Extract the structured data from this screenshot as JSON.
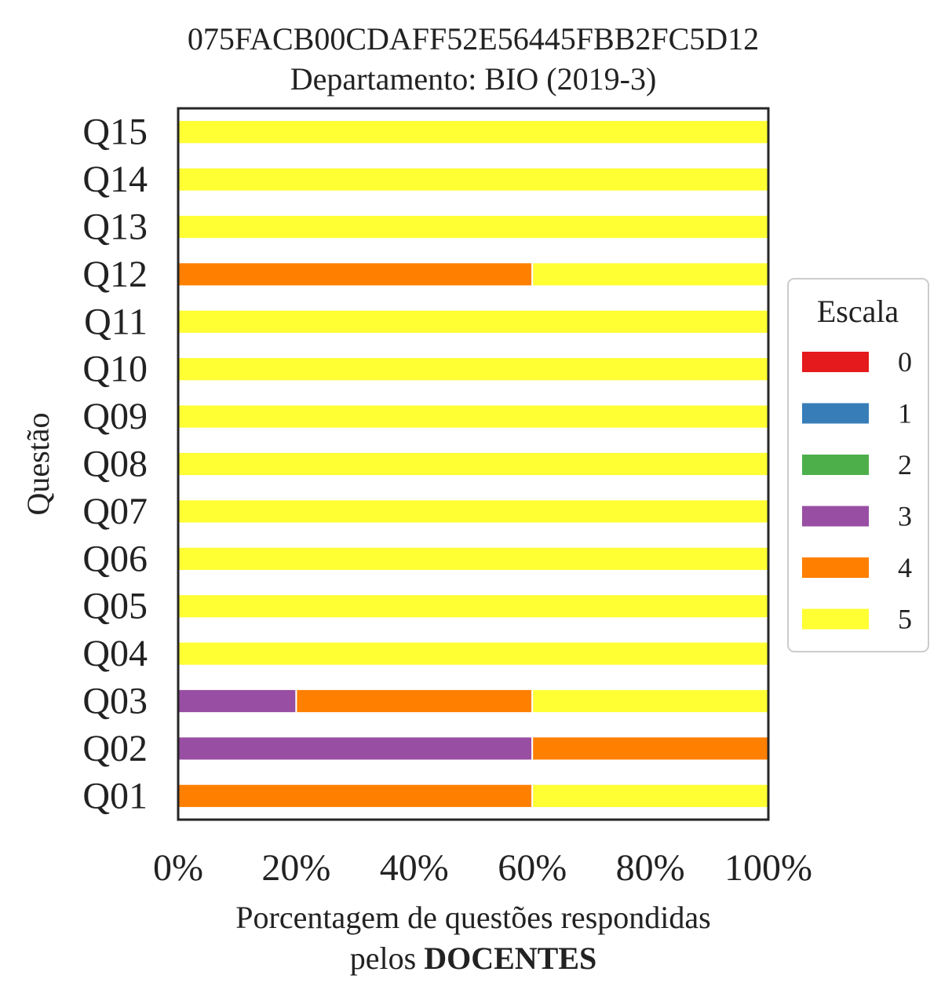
{
  "chart_data": {
    "type": "bar",
    "orientation": "horizontal",
    "stacked": true,
    "title": "075FACB00CDAFF52E56445FBB2FC5D12",
    "subtitle": "Departamento: BIO (2019-3)",
    "ylabel": "Questão",
    "xlabel_line1": "Porcentagem de questões respondidas",
    "xlabel_line2_prefix": "pelos ",
    "xlabel_line2_bold": "DOCENTES",
    "xlim": [
      0,
      100
    ],
    "xticks": [
      0,
      20,
      40,
      60,
      80,
      100
    ],
    "xtick_labels": [
      "0%",
      "20%",
      "40%",
      "60%",
      "80%",
      "100%"
    ],
    "categories": [
      "Q01",
      "Q02",
      "Q03",
      "Q04",
      "Q05",
      "Q06",
      "Q07",
      "Q08",
      "Q09",
      "Q10",
      "Q11",
      "Q12",
      "Q13",
      "Q14",
      "Q15"
    ],
    "legend": {
      "title": "Escala",
      "placement": "center-right outside"
    },
    "series": [
      {
        "name": "0",
        "color": "#e41a1c",
        "values": [
          0,
          0,
          0,
          0,
          0,
          0,
          0,
          0,
          0,
          0,
          0,
          0,
          0,
          0,
          0
        ]
      },
      {
        "name": "1",
        "color": "#377eb8",
        "values": [
          0,
          0,
          0,
          0,
          0,
          0,
          0,
          0,
          0,
          0,
          0,
          0,
          0,
          0,
          0
        ]
      },
      {
        "name": "2",
        "color": "#4daf4a",
        "values": [
          0,
          0,
          0,
          0,
          0,
          0,
          0,
          0,
          0,
          0,
          0,
          0,
          0,
          0,
          0
        ]
      },
      {
        "name": "3",
        "color": "#984ea3",
        "values": [
          0,
          60,
          20,
          0,
          0,
          0,
          0,
          0,
          0,
          0,
          0,
          0,
          0,
          0,
          0
        ]
      },
      {
        "name": "4",
        "color": "#ff7f00",
        "values": [
          60,
          40,
          40,
          0,
          0,
          0,
          0,
          0,
          0,
          0,
          0,
          60,
          0,
          0,
          0
        ]
      },
      {
        "name": "5",
        "color": "#ffff33",
        "values": [
          40,
          0,
          40,
          100,
          100,
          100,
          100,
          100,
          100,
          100,
          100,
          40,
          100,
          100,
          100
        ]
      }
    ]
  }
}
